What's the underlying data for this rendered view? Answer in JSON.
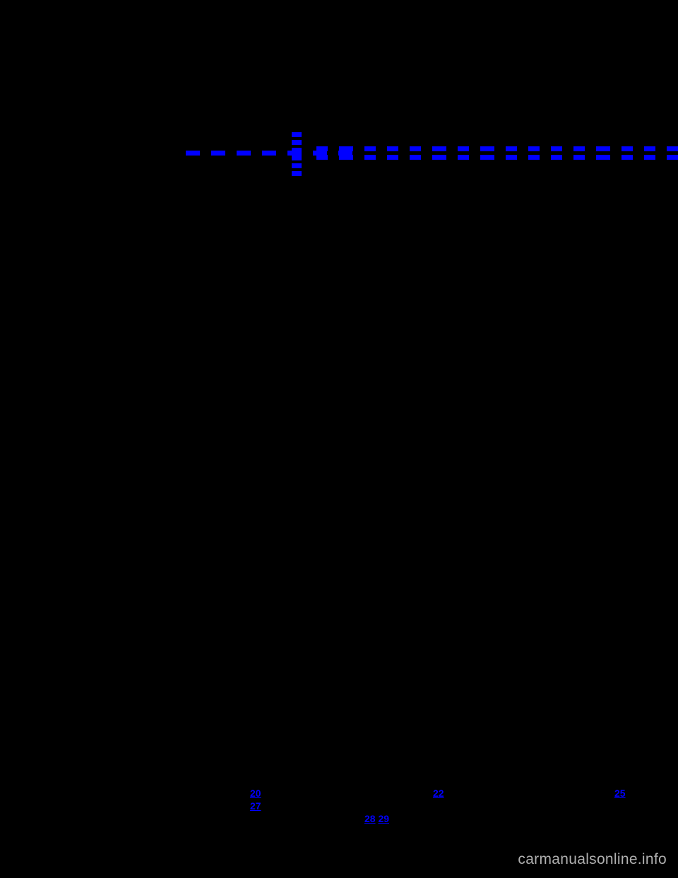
{
  "colors": {
    "background": "#000000",
    "dash": "#0000ff",
    "link": "#0000ff",
    "watermark": "#b0b0b0"
  },
  "top_strip": {
    "stack_count": 6,
    "left_dashes": [
      "d-m",
      "d-m",
      "d-m",
      "d-m",
      "d-m",
      "d-m",
      "d-m"
    ],
    "right_row_top": [
      "d-s",
      "d-m",
      "d-s",
      "d-s",
      "d-s",
      "d-m",
      "d-s",
      "d-m",
      "d-s",
      "d-s",
      "d-s",
      "d-s",
      "d-m",
      "d-s",
      "d-s",
      "d-s",
      "d-s",
      "d-s",
      "d-m",
      "d-m",
      "d-m",
      "d-m",
      "d-m"
    ],
    "right_row_bottom": [
      "d-s",
      "d-m",
      "d-s",
      "d-s",
      "d-s",
      "d-m",
      "d-s",
      "d-m",
      "d-s",
      "d-s",
      "d-s",
      "d-s",
      "d-m",
      "d-s",
      "d-s",
      "d-s",
      "d-s",
      "d-s",
      "d-m",
      "d-m",
      "d-m",
      "d-m",
      "d-m"
    ]
  },
  "page_links": {
    "p20": "20",
    "p22": "22",
    "p25": "25",
    "p27": "27",
    "p28": "28",
    "p29": "29"
  },
  "watermark": "carmanualsonline.info"
}
